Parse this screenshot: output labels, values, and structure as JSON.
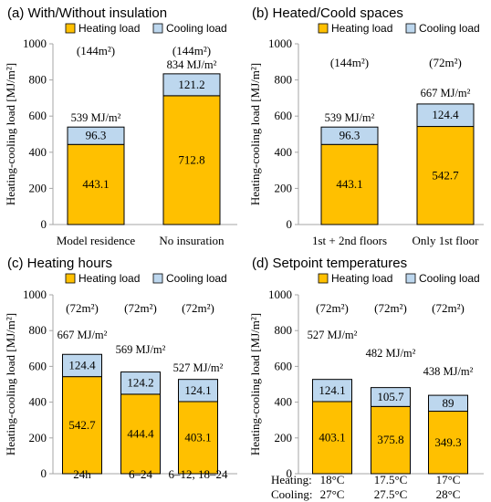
{
  "colors": {
    "heating": "#FFC000",
    "cooling": "#BDD7EE",
    "stroke": "#000000",
    "axis": "#A6A6A6"
  },
  "legend": {
    "heating": "Heating load",
    "cooling": "Cooling load"
  },
  "ylabel": "Heating-cooling load [MJ/m²]",
  "bottom_labels": {
    "heating_label": "Heating:",
    "cooling_label": "Cooling:",
    "heating_values": [
      "18°C",
      "17.5°C",
      "17°C"
    ],
    "cooling_values": [
      "27°C",
      "27.5°C",
      "28°C"
    ]
  },
  "chart_data": [
    {
      "type": "bar",
      "title": "(a) With/Without insulation",
      "ylabel": "Heating-cooling load [MJ/m²]",
      "ylim": [
        0,
        1000
      ],
      "yticks": [
        0,
        200,
        400,
        600,
        800,
        1000
      ],
      "categories": [
        "Model residence",
        "No insuration"
      ],
      "areas": [
        "(144m²)",
        "(144m²)"
      ],
      "totals": [
        "539 MJ/m²",
        "834 MJ/m²"
      ],
      "series": [
        {
          "name": "Heating load",
          "values": [
            443.1,
            712.8
          ]
        },
        {
          "name": "Cooling load",
          "values": [
            96.3,
            121.2
          ]
        }
      ]
    },
    {
      "type": "bar",
      "title": "(b) Heated/Coold spaces",
      "ylabel": "Heating-cooling load [MJ/m²]",
      "ylim": [
        0,
        1000
      ],
      "yticks": [
        0,
        200,
        400,
        600,
        800,
        1000
      ],
      "categories": [
        "1st + 2nd floors",
        "Only 1st floor"
      ],
      "areas": [
        "(144m²)",
        "(72m²)"
      ],
      "totals": [
        "539 MJ/m²",
        "667 MJ/m²"
      ],
      "series": [
        {
          "name": "Heating load",
          "values": [
            443.1,
            542.7
          ]
        },
        {
          "name": "Cooling load",
          "values": [
            96.3,
            124.4
          ]
        }
      ]
    },
    {
      "type": "bar",
      "title": "(c) Heating hours",
      "ylabel": "Heating-cooling load [MJ/m²]",
      "ylim": [
        0,
        1000
      ],
      "yticks": [
        0,
        200,
        400,
        600,
        800,
        1000
      ],
      "categories": [
        "24h",
        "6–24",
        "6–12, 18–24"
      ],
      "areas": [
        "(72m²)",
        "(72m²)",
        "(72m²)"
      ],
      "totals": [
        "667 MJ/m²",
        "569 MJ/m²",
        "527 MJ/m²"
      ],
      "series": [
        {
          "name": "Heating load",
          "values": [
            542.7,
            444.4,
            403.1
          ]
        },
        {
          "name": "Cooling load",
          "values": [
            124.4,
            124.2,
            124.1
          ]
        }
      ]
    },
    {
      "type": "bar",
      "title": "(d) Setpoint temperatures",
      "ylabel": "Heating-cooling load [MJ/m²]",
      "ylim": [
        0,
        1000
      ],
      "yticks": [
        0,
        200,
        400,
        600,
        800,
        1000
      ],
      "categories": [
        "",
        "",
        ""
      ],
      "areas": [
        "(72m²)",
        "(72m²)",
        "(72m²)"
      ],
      "totals": [
        "527 MJ/m²",
        "482 MJ/m²",
        "438 MJ/m²"
      ],
      "series": [
        {
          "name": "Heating load",
          "values": [
            403.1,
            375.8,
            349.3
          ]
        },
        {
          "name": "Cooling load",
          "values": [
            124.1,
            105.7,
            89
          ]
        }
      ]
    }
  ]
}
